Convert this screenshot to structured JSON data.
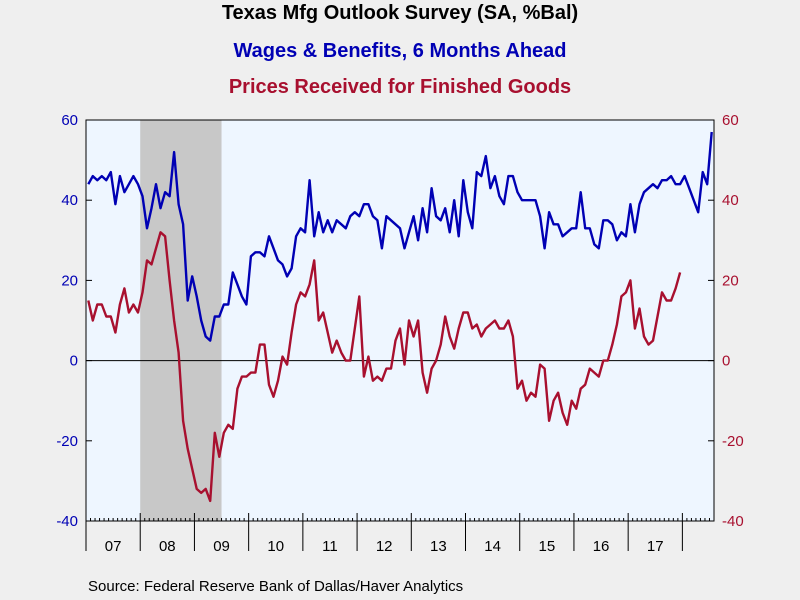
{
  "title": "Texas Mfg Outlook Survey (SA, %Bal)",
  "subtitles": [
    {
      "text": "Wages & Benefits, 6 Months Ahead",
      "color": "#0000b4"
    },
    {
      "text": "Prices Received for Finished Goods",
      "color": "#a8102f"
    }
  ],
  "source": "Source:  Federal Reserve Bank of Dallas/Haver Analytics",
  "colors": {
    "plot_bg": "#eef6ff",
    "recession": "#c8c8c8",
    "left_axis": "#0000b4",
    "right_axis": "#a8102f",
    "zero_line": "#000000"
  },
  "chart_data": {
    "type": "line",
    "x_start": "2007-01",
    "frequency": "monthly",
    "x_tick_labels": [
      "07",
      "08",
      "09",
      "10",
      "11",
      "12",
      "13",
      "14",
      "15",
      "16",
      "17"
    ],
    "y_left": {
      "ylim": [
        -40,
        60
      ],
      "ticks": [
        "60",
        "40",
        "20",
        "0",
        "-20",
        "-40"
      ]
    },
    "y_right": {
      "ylim": [
        -40,
        60
      ],
      "ticks": [
        "60",
        "40",
        "20",
        "0",
        "-20",
        "-40"
      ]
    },
    "recession_shading": {
      "start": "2008-01",
      "end": "2009-06"
    },
    "zero_line": 0,
    "series": [
      {
        "name": "Wages & Benefits, 6 Months Ahead",
        "color": "#0000b4",
        "values": [
          44,
          46,
          45,
          46,
          45,
          47,
          39,
          46,
          42,
          44,
          46,
          44,
          41,
          33,
          38,
          44,
          38,
          42,
          41,
          52,
          39,
          34,
          15,
          21,
          16,
          10,
          6,
          5,
          11,
          11,
          14,
          14,
          22,
          19,
          16,
          14,
          26,
          27,
          27,
          26,
          31,
          28,
          25,
          24,
          21,
          23,
          31,
          33,
          32,
          45,
          31,
          37,
          32,
          35,
          32,
          35,
          34,
          33,
          36,
          37,
          36,
          39,
          39,
          36,
          35,
          28,
          36,
          35,
          34,
          33,
          28,
          32,
          36,
          30,
          38,
          32,
          43,
          36,
          35,
          38,
          32,
          40,
          31,
          45,
          37,
          33,
          47,
          46,
          51,
          43,
          46,
          41,
          39,
          46,
          46,
          42,
          40,
          40,
          40,
          40,
          36,
          28,
          37,
          34,
          34,
          31,
          32,
          33,
          33,
          42,
          33,
          33,
          29,
          28,
          35,
          35,
          34,
          30,
          32,
          31,
          39,
          32,
          39,
          42,
          43,
          44,
          43,
          45,
          45,
          46,
          44,
          44,
          46,
          43,
          40,
          37,
          47,
          44,
          57
        ]
      },
      {
        "name": "Prices Received for Finished Goods",
        "color": "#a8102f",
        "values": [
          15,
          10,
          14,
          14,
          11,
          11,
          7,
          14,
          18,
          12,
          14,
          12,
          17,
          25,
          24,
          28,
          32,
          31,
          20,
          10,
          2,
          -15,
          -22,
          -27,
          -32,
          -33,
          -32,
          -35,
          -18,
          -24,
          -18,
          -16,
          -17,
          -7,
          -4,
          -4,
          -3,
          -3,
          4,
          4,
          -6,
          -9,
          -5,
          1,
          -1,
          7,
          14,
          17,
          16,
          19,
          25,
          10,
          12,
          7,
          2,
          5,
          2,
          0,
          0,
          8,
          16,
          -4,
          1,
          -5,
          -4,
          -5,
          -2,
          -2,
          5,
          8,
          -1,
          10,
          6,
          10,
          -3,
          -8,
          -2,
          0,
          4,
          11,
          6,
          3,
          8,
          12,
          12,
          8,
          9,
          6,
          8,
          9,
          10,
          8,
          8,
          10,
          6,
          -7,
          -5,
          -10,
          -8,
          -9,
          -1,
          -2,
          -15,
          -10,
          -8,
          -13,
          -16,
          -10,
          -12,
          -7,
          -6,
          -2,
          -3,
          -4,
          0,
          0,
          4,
          9,
          16,
          17,
          20,
          8,
          13,
          6,
          4,
          5,
          11,
          17,
          15,
          15,
          18,
          22
        ]
      }
    ]
  }
}
